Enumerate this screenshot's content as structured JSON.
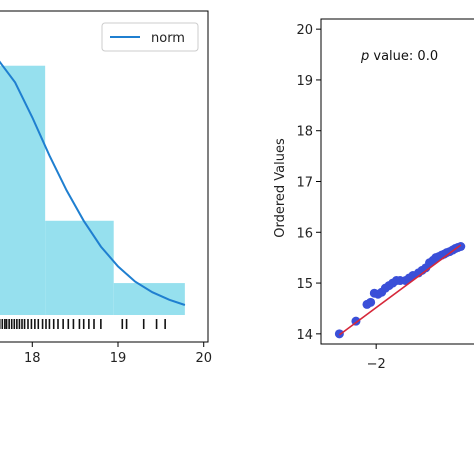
{
  "chart_data": [
    {
      "type": "bar",
      "title": "",
      "xlabel": "",
      "ylabel": "",
      "xlim": [
        17.6,
        20.05
      ],
      "ylim": [
        0,
        1.0
      ],
      "xticks": [
        18,
        19,
        20
      ],
      "xtick_labels": [
        "18",
        "19",
        "20"
      ],
      "histogram_bins": [
        {
          "x0": 17.6,
          "x1": 18.15,
          "density": 0.82
        },
        {
          "x0": 18.15,
          "x1": 18.95,
          "density": 0.31
        },
        {
          "x0": 18.95,
          "x1": 19.78,
          "density": 0.105
        }
      ],
      "fit_curve": {
        "name": "norm",
        "x": [
          17.6,
          17.8,
          18.0,
          18.2,
          18.4,
          18.6,
          18.8,
          19.0,
          19.2,
          19.4,
          19.6,
          19.78
        ],
        "y": [
          0.84,
          0.765,
          0.65,
          0.525,
          0.41,
          0.31,
          0.225,
          0.16,
          0.11,
          0.075,
          0.05,
          0.033
        ]
      },
      "rug": [
        17.62,
        17.65,
        17.68,
        17.7,
        17.73,
        17.76,
        17.79,
        17.82,
        17.85,
        17.88,
        17.91,
        17.95,
        17.99,
        18.03,
        18.07,
        18.12,
        18.16,
        18.2,
        18.25,
        18.3,
        18.36,
        18.42,
        18.48,
        18.55,
        18.6,
        18.66,
        18.72,
        18.8,
        19.05,
        19.1,
        19.3,
        19.45,
        19.55
      ],
      "legend": {
        "entries": [
          "norm"
        ],
        "placement": "upper-right"
      },
      "grid": false,
      "colors": {
        "hist": "#96e0ee",
        "curve": "#1f7fd0",
        "rug": "#111111"
      }
    },
    {
      "type": "scatter",
      "title": "",
      "xlabel": "",
      "ylabel": "Ordered Values",
      "xlim": [
        -3.5,
        0.85
      ],
      "ylim": [
        13.8,
        20.2
      ],
      "xticks": [
        -2
      ],
      "xtick_labels": [
        "−2"
      ],
      "yticks": [
        14,
        15,
        16,
        17,
        18,
        19,
        20
      ],
      "ytick_labels": [
        "14",
        "15",
        "16",
        "17",
        "18",
        "19",
        "20"
      ],
      "annotation": {
        "italic": "p",
        "text": " value: 0.0"
      },
      "points": {
        "x": [
          -3.0,
          -2.55,
          -2.25,
          -2.15,
          -2.05,
          -1.95,
          -1.85,
          -1.75,
          -1.65,
          -1.55,
          -1.45,
          -1.35,
          -1.2,
          -1.1,
          -1.0,
          -0.85,
          -0.75,
          -0.65,
          -0.55,
          -0.45,
          -0.38,
          -0.3,
          -0.22,
          -0.15,
          -0.08,
          0.0,
          0.08,
          0.15,
          0.22,
          0.3
        ],
        "y": [
          14.0,
          14.25,
          14.58,
          14.62,
          14.8,
          14.78,
          14.82,
          14.9,
          14.95,
          15.0,
          15.05,
          15.05,
          15.05,
          15.1,
          15.15,
          15.2,
          15.25,
          15.3,
          15.4,
          15.45,
          15.5,
          15.52,
          15.55,
          15.57,
          15.6,
          15.62,
          15.65,
          15.68,
          15.7,
          15.72
        ]
      },
      "fit_line": {
        "x": [
          -3.0,
          0.3
        ],
        "y": [
          13.98,
          15.75
        ]
      },
      "grid": false,
      "colors": {
        "points": "#3a4fd8",
        "line": "#d6283a"
      }
    }
  ]
}
